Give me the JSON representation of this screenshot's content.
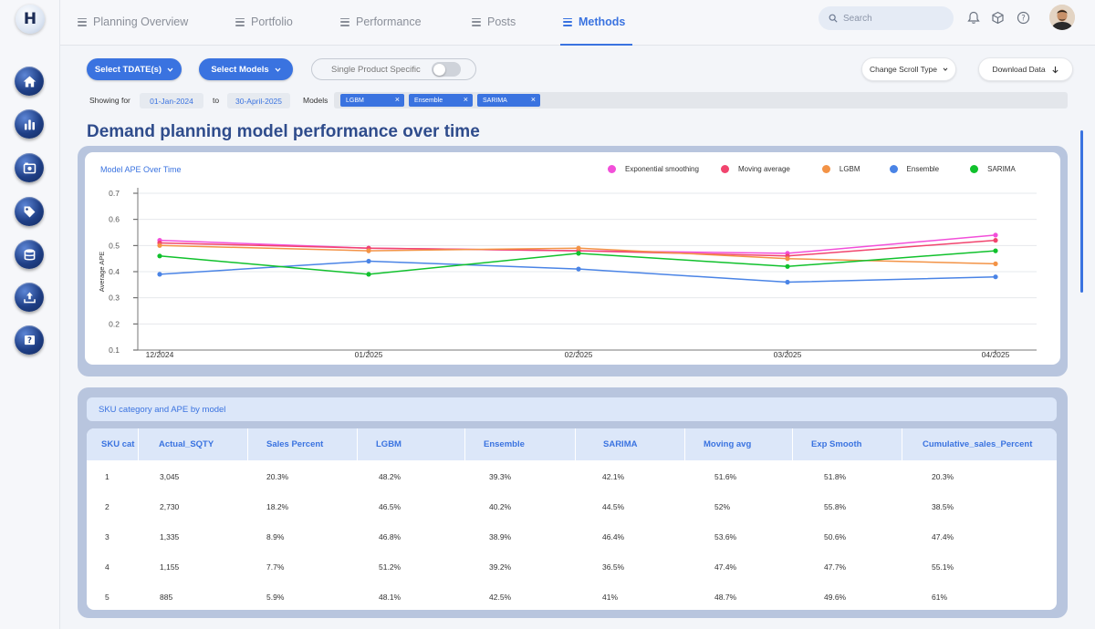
{
  "nav": {
    "tabs": [
      {
        "label": "Planning Overview",
        "active": false
      },
      {
        "label": "Portfolio",
        "active": false
      },
      {
        "label": "Performance",
        "active": false
      },
      {
        "label": "Posts",
        "active": false
      },
      {
        "label": "Methods",
        "active": true
      }
    ],
    "search_placeholder": "Search",
    "accent": "#3a73e0"
  },
  "sidebar": {
    "icons": [
      "home-icon",
      "bar-chart-icon",
      "brand-icon",
      "tag-icon",
      "database-icon",
      "upload-icon",
      "help-icon"
    ]
  },
  "controls": {
    "select_tdate": "Select TDATE(s)",
    "select_models": "Select Models",
    "single_product": "Single Product Specific",
    "single_product_on": false,
    "change_scroll": "Change Scroll Type",
    "download": "Download Data"
  },
  "filters": {
    "showing_for": "Showing for",
    "from_date": "01-Jan-2024",
    "to_label": "to",
    "to_date": "30-April-2025",
    "models_label": "Models",
    "models": [
      "LGBM",
      "Ensemble",
      "SARIMA"
    ]
  },
  "page_title": "Demand planning model performance over time",
  "chart_data": {
    "type": "line",
    "title": "Model APE Over Time",
    "xlabel": "",
    "ylabel": "Average APE",
    "categories": [
      "12/2024",
      "01/2025",
      "02/2025",
      "03/2025",
      "04/2025"
    ],
    "yticks": [
      "0.7",
      "0.6",
      "0.5",
      "0.4",
      "0.3",
      "0.2",
      "0.1"
    ],
    "ylim": [
      0.1,
      0.7
    ],
    "grid": true,
    "legend_position": "top-right",
    "series": [
      {
        "name": "Exponential smoothing",
        "color": "#f24fd9",
        "values": [
          0.52,
          0.49,
          0.48,
          0.47,
          0.54
        ]
      },
      {
        "name": "Moving average",
        "color": "#f1446e",
        "values": [
          0.51,
          0.49,
          0.48,
          0.46,
          0.52
        ]
      },
      {
        "name": "LGBM",
        "color": "#f39346",
        "values": [
          0.5,
          0.48,
          0.49,
          0.45,
          0.43
        ]
      },
      {
        "name": "Ensemble",
        "color": "#4a84e6",
        "values": [
          0.39,
          0.44,
          0.41,
          0.36,
          0.38
        ]
      },
      {
        "name": "SARIMA",
        "color": "#10c12c",
        "values": [
          0.46,
          0.39,
          0.47,
          0.42,
          0.48
        ]
      }
    ]
  },
  "table": {
    "caption": "SKU category and APE by model",
    "headers": [
      "SKU cat",
      "Actual_SQTY",
      "Sales Percent",
      "LGBM",
      "Ensemble",
      "SARIMA",
      "Moving avg",
      "Exp Smooth",
      "Cumulative_sales_Percent"
    ],
    "rows": [
      [
        "1",
        "3,045",
        "20.3%",
        "48.2%",
        "39.3%",
        "42.1%",
        "51.6%",
        "51.8%",
        "20.3%"
      ],
      [
        "2",
        "2,730",
        "18.2%",
        "46.5%",
        "40.2%",
        "44.5%",
        "52%",
        "55.8%",
        "38.5%"
      ],
      [
        "3",
        "1,335",
        "8.9%",
        "46.8%",
        "38.9%",
        "46.4%",
        "53.6%",
        "50.6%",
        "47.4%"
      ],
      [
        "4",
        "1,155",
        "7.7%",
        "51.2%",
        "39.2%",
        "36.5%",
        "47.4%",
        "47.7%",
        "55.1%"
      ],
      [
        "5",
        "885",
        "5.9%",
        "48.1%",
        "42.5%",
        "41%",
        "48.7%",
        "49.6%",
        "61%"
      ]
    ]
  }
}
